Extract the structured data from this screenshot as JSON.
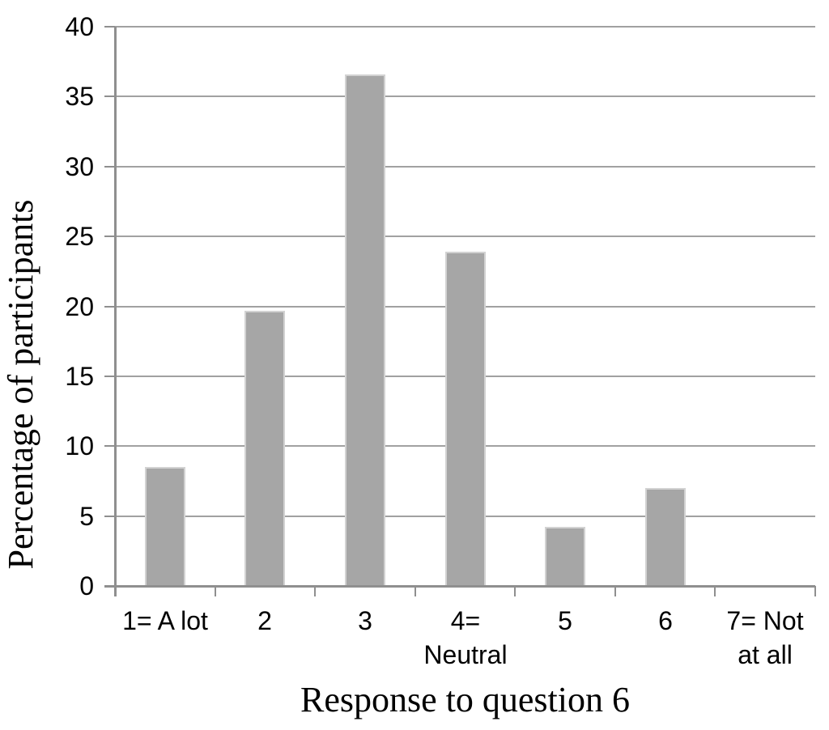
{
  "chart_data": {
    "type": "bar",
    "title": "",
    "xlabel": "Response to question 6",
    "ylabel": "Percentage of participants",
    "categories": [
      "1= A lot",
      "2",
      "3",
      "4=\nNeutral",
      "5",
      "6",
      "7= Not\nat all"
    ],
    "values": [
      8.5,
      19.7,
      36.6,
      23.9,
      4.2,
      7,
      0
    ],
    "ylim": [
      0,
      40
    ],
    "yticks": [
      0,
      5,
      10,
      15,
      20,
      25,
      30,
      35,
      40
    ],
    "grid": true,
    "legend_position": "none",
    "bar_color": "#a6a6a6",
    "bar_edge_color": "#d2d2d2",
    "grid_color": "#a1a1a1",
    "axis_color": "#8f8f8f",
    "text_color": "#000000"
  }
}
